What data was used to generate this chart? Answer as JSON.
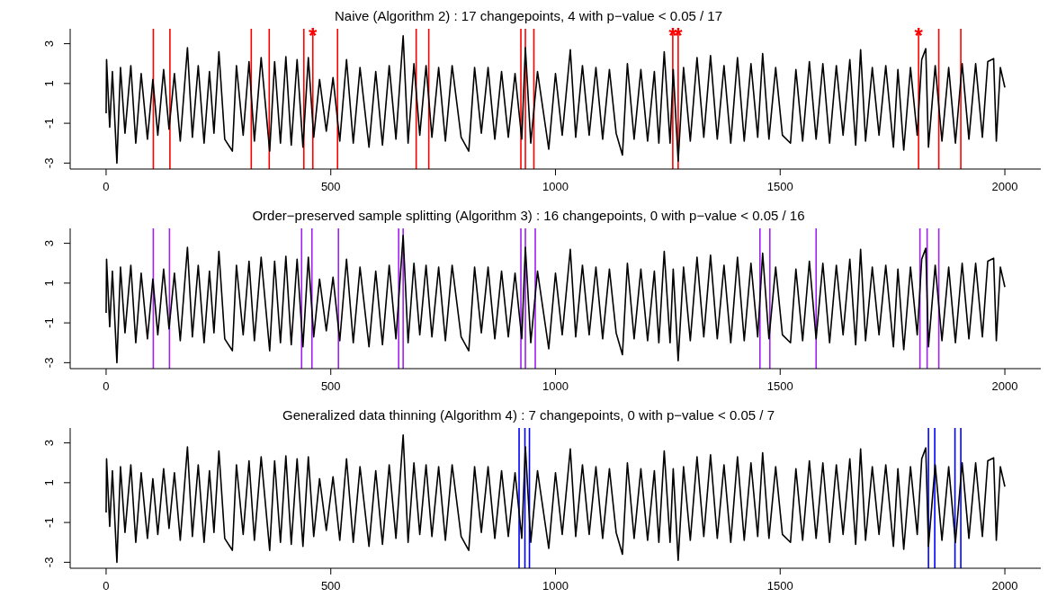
{
  "chart_data": [
    {
      "type": "line",
      "title": "Naive (Algorithm 2) : 17 changepoints, 4 with p−value < 0.05 / 17",
      "xlim": [
        -80,
        2080
      ],
      "xticks": [
        0,
        500,
        1000,
        1500,
        2000
      ],
      "ylim": [
        -3.3,
        3.75
      ],
      "yticks": [
        -3,
        -1,
        1,
        3
      ],
      "grid": false,
      "legend": false,
      "marker": "none",
      "line_style": "solid",
      "x": [
        0,
        1,
        8,
        14,
        24,
        32,
        42,
        55,
        66,
        78,
        92,
        104,
        115,
        128,
        140,
        152,
        165,
        181,
        192,
        205,
        218,
        230,
        240,
        251,
        264,
        281,
        290,
        305,
        318,
        330,
        345,
        364,
        375,
        388,
        400,
        412,
        425,
        438,
        450,
        462,
        475,
        490,
        505,
        520,
        535,
        550,
        565,
        585,
        600,
        615,
        630,
        645,
        661,
        672,
        685,
        698,
        712,
        725,
        740,
        755,
        770,
        790,
        807,
        820,
        835,
        850,
        865,
        880,
        895,
        910,
        925,
        933,
        945,
        960,
        985,
        1000,
        1015,
        1033,
        1045,
        1060,
        1075,
        1090,
        1105,
        1120,
        1135,
        1149,
        1160,
        1175,
        1190,
        1205,
        1220,
        1230,
        1242,
        1255,
        1262,
        1273,
        1285,
        1300,
        1315,
        1330,
        1345,
        1360,
        1375,
        1390,
        1405,
        1420,
        1435,
        1450,
        1461,
        1475,
        1490,
        1505,
        1523,
        1535,
        1550,
        1565,
        1580,
        1595,
        1610,
        1625,
        1640,
        1655,
        1668,
        1679,
        1690,
        1705,
        1720,
        1735,
        1752,
        1762,
        1775,
        1790,
        1805,
        1815,
        1824,
        1830,
        1845,
        1860,
        1875,
        1890,
        1905,
        1920,
        1935,
        1950,
        1962,
        1975,
        1981,
        1990,
        2000
      ],
      "series": [
        {
          "color": "#000000",
          "values": [
            -0.5,
            2.2,
            -1.2,
            1.6,
            -3.0,
            1.8,
            -1.5,
            1.9,
            -2.0,
            1.5,
            -1.8,
            1.2,
            -1.6,
            1.7,
            -1.3,
            1.5,
            -1.9,
            2.8,
            -1.7,
            1.9,
            -2.0,
            1.6,
            -1.5,
            2.6,
            -1.8,
            -2.4,
            1.9,
            -1.6,
            2.1,
            -1.9,
            2.3,
            -2.4,
            2.1,
            -2.0,
            2.35,
            -2.1,
            2.2,
            -2.2,
            2.3,
            -1.7,
            1.2,
            -1.4,
            1.3,
            -1.9,
            2.2,
            -2.0,
            1.8,
            -2.2,
            1.6,
            -2.1,
            1.9,
            -1.8,
            3.4,
            -2.0,
            2.0,
            -1.6,
            1.9,
            -1.7,
            1.8,
            -1.9,
            1.9,
            -1.7,
            -2.4,
            1.8,
            -1.5,
            1.8,
            -1.8,
            1.6,
            -1.7,
            1.5,
            -1.8,
            2.8,
            -2.0,
            1.6,
            -2.3,
            1.5,
            -1.6,
            2.7,
            -1.7,
            1.9,
            -1.6,
            1.8,
            -1.8,
            1.7,
            -1.5,
            -2.6,
            2.0,
            -1.8,
            1.7,
            -1.9,
            1.6,
            -2.0,
            2.6,
            -2.0,
            1.7,
            -2.9,
            1.8,
            -1.9,
            2.3,
            -1.7,
            2.4,
            -1.8,
            1.9,
            -2.0,
            2.3,
            -1.9,
            2.0,
            -1.7,
            2.5,
            -1.8,
            1.8,
            -1.6,
            -2.0,
            1.7,
            -1.9,
            2.1,
            -1.8,
            2.0,
            -2.0,
            1.9,
            -1.6,
            2.2,
            -2.1,
            2.7,
            -1.9,
            1.8,
            -1.6,
            1.9,
            -2.2,
            1.7,
            -2.35,
            1.8,
            -1.6,
            2.2,
            2.75,
            -2.2,
            1.9,
            -1.9,
            1.8,
            -2.0,
            2.0,
            -1.8,
            2.0,
            -1.7,
            2.1,
            2.25,
            -1.9,
            1.8,
            0.8
          ]
        }
      ],
      "ref_lines": [
        {
          "axis": "x",
          "value": 105,
          "color": "#ff0000"
        },
        {
          "axis": "x",
          "value": 142,
          "color": "#ff0000"
        },
        {
          "axis": "x",
          "value": 323,
          "color": "#ff0000"
        },
        {
          "axis": "x",
          "value": 363,
          "color": "#ff0000"
        },
        {
          "axis": "x",
          "value": 440,
          "color": "#ff0000"
        },
        {
          "axis": "x",
          "value": 460,
          "color": "#ff0000"
        },
        {
          "axis": "x",
          "value": 515,
          "color": "#ff0000"
        },
        {
          "axis": "x",
          "value": 690,
          "color": "#ff0000"
        },
        {
          "axis": "x",
          "value": 718,
          "color": "#ff0000"
        },
        {
          "axis": "x",
          "value": 923,
          "color": "#ff0000"
        },
        {
          "axis": "x",
          "value": 933,
          "color": "#ff0000"
        },
        {
          "axis": "x",
          "value": 952,
          "color": "#ff0000"
        },
        {
          "axis": "x",
          "value": 1261,
          "color": "#ff0000"
        },
        {
          "axis": "x",
          "value": 1273,
          "color": "#ff0000"
        },
        {
          "axis": "x",
          "value": 1808,
          "color": "#ff0000"
        },
        {
          "axis": "x",
          "value": 1853,
          "color": "#ff0000"
        },
        {
          "axis": "x",
          "value": 1902,
          "color": "#ff0000"
        }
      ],
      "annotations": [
        {
          "text": "*",
          "x": 460,
          "y": 3.5
        },
        {
          "text": "*",
          "x": 1261,
          "y": 3.5
        },
        {
          "text": "*",
          "x": 1273,
          "y": 3.5
        },
        {
          "text": "*",
          "x": 1808,
          "y": 3.5
        }
      ]
    },
    {
      "type": "line",
      "title": "Order−preserved sample splitting (Algorithm 3) : 16 changepoints, 0 with p−value < 0.05 / 16",
      "xlim": [
        -80,
        2080
      ],
      "xticks": [
        0,
        500,
        1000,
        1500,
        2000
      ],
      "ylim": [
        -3.3,
        3.75
      ],
      "yticks": [
        -3,
        -1,
        1,
        3
      ],
      "grid": false,
      "legend": false,
      "marker": "none",
      "line_style": "solid",
      "x": [
        0,
        1,
        8,
        14,
        24,
        32,
        42,
        55,
        66,
        78,
        92,
        104,
        115,
        128,
        140,
        152,
        165,
        181,
        192,
        205,
        218,
        230,
        240,
        251,
        264,
        281,
        290,
        305,
        318,
        330,
        345,
        364,
        375,
        388,
        400,
        412,
        425,
        438,
        450,
        462,
        475,
        490,
        505,
        520,
        535,
        550,
        565,
        585,
        600,
        615,
        630,
        645,
        661,
        672,
        685,
        698,
        712,
        725,
        740,
        755,
        770,
        790,
        807,
        820,
        835,
        850,
        865,
        880,
        895,
        910,
        925,
        933,
        945,
        960,
        985,
        1000,
        1015,
        1033,
        1045,
        1060,
        1075,
        1090,
        1105,
        1120,
        1135,
        1149,
        1160,
        1175,
        1190,
        1205,
        1220,
        1230,
        1242,
        1255,
        1262,
        1273,
        1285,
        1300,
        1315,
        1330,
        1345,
        1360,
        1375,
        1390,
        1405,
        1420,
        1435,
        1450,
        1461,
        1475,
        1490,
        1505,
        1523,
        1535,
        1550,
        1565,
        1580,
        1595,
        1610,
        1625,
        1640,
        1655,
        1668,
        1679,
        1690,
        1705,
        1720,
        1735,
        1752,
        1762,
        1775,
        1790,
        1805,
        1815,
        1824,
        1830,
        1845,
        1860,
        1875,
        1890,
        1905,
        1920,
        1935,
        1950,
        1962,
        1975,
        1981,
        1990,
        2000
      ],
      "series": [
        {
          "color": "#000000",
          "values": [
            -0.5,
            2.2,
            -1.2,
            1.6,
            -3.0,
            1.8,
            -1.5,
            1.9,
            -2.0,
            1.5,
            -1.8,
            1.2,
            -1.6,
            1.7,
            -1.3,
            1.5,
            -1.9,
            2.8,
            -1.7,
            1.9,
            -2.0,
            1.6,
            -1.5,
            2.6,
            -1.8,
            -2.4,
            1.9,
            -1.6,
            2.1,
            -1.9,
            2.3,
            -2.4,
            2.1,
            -2.0,
            2.35,
            -2.1,
            2.2,
            -2.2,
            2.3,
            -1.7,
            1.2,
            -1.4,
            1.3,
            -1.9,
            2.2,
            -2.0,
            1.8,
            -2.2,
            1.6,
            -2.1,
            1.9,
            -1.8,
            3.4,
            -2.0,
            2.0,
            -1.6,
            1.9,
            -1.7,
            1.8,
            -1.9,
            1.9,
            -1.7,
            -2.4,
            1.8,
            -1.5,
            1.8,
            -1.8,
            1.6,
            -1.7,
            1.5,
            -1.8,
            2.8,
            -2.0,
            1.6,
            -2.3,
            1.5,
            -1.6,
            2.7,
            -1.7,
            1.9,
            -1.6,
            1.8,
            -1.8,
            1.7,
            -1.5,
            -2.6,
            2.0,
            -1.8,
            1.7,
            -1.9,
            1.6,
            -2.0,
            2.6,
            -2.0,
            1.7,
            -2.9,
            1.8,
            -1.9,
            2.3,
            -1.7,
            2.4,
            -1.8,
            1.9,
            -2.0,
            2.3,
            -1.9,
            2.0,
            -1.7,
            2.5,
            -1.8,
            1.8,
            -1.6,
            -2.0,
            1.7,
            -1.9,
            2.1,
            -1.8,
            2.0,
            -2.0,
            1.9,
            -1.6,
            2.2,
            -2.1,
            2.7,
            -1.9,
            1.8,
            -1.6,
            1.9,
            -2.2,
            1.7,
            -2.35,
            1.8,
            -1.6,
            2.2,
            2.75,
            -2.2,
            1.9,
            -1.9,
            1.8,
            -2.0,
            2.0,
            -1.8,
            2.0,
            -1.7,
            2.1,
            2.25,
            -1.9,
            1.8,
            0.8
          ]
        }
      ],
      "ref_lines": [
        {
          "axis": "x",
          "value": 105,
          "color": "#a020f0"
        },
        {
          "axis": "x",
          "value": 141,
          "color": "#a020f0"
        },
        {
          "axis": "x",
          "value": 435,
          "color": "#a020f0"
        },
        {
          "axis": "x",
          "value": 458,
          "color": "#a020f0"
        },
        {
          "axis": "x",
          "value": 517,
          "color": "#a020f0"
        },
        {
          "axis": "x",
          "value": 651,
          "color": "#a020f0"
        },
        {
          "axis": "x",
          "value": 661,
          "color": "#a020f0"
        },
        {
          "axis": "x",
          "value": 923,
          "color": "#a020f0"
        },
        {
          "axis": "x",
          "value": 933,
          "color": "#a020f0"
        },
        {
          "axis": "x",
          "value": 955,
          "color": "#a020f0"
        },
        {
          "axis": "x",
          "value": 1455,
          "color": "#a020f0"
        },
        {
          "axis": "x",
          "value": 1477,
          "color": "#a020f0"
        },
        {
          "axis": "x",
          "value": 1580,
          "color": "#a020f0"
        },
        {
          "axis": "x",
          "value": 1811,
          "color": "#a020f0"
        },
        {
          "axis": "x",
          "value": 1827,
          "color": "#a020f0"
        },
        {
          "axis": "x",
          "value": 1853,
          "color": "#a020f0"
        }
      ]
    },
    {
      "type": "line",
      "title": "Generalized data thinning (Algorithm 4) : 7 changepoints, 0 with p−value < 0.05 / 7",
      "xlim": [
        -80,
        2080
      ],
      "xticks": [
        0,
        500,
        1000,
        1500,
        2000
      ],
      "ylim": [
        -3.3,
        3.75
      ],
      "yticks": [
        -3,
        -1,
        1,
        3
      ],
      "grid": false,
      "legend": false,
      "marker": "none",
      "line_style": "solid",
      "x": [
        0,
        1,
        8,
        14,
        24,
        32,
        42,
        55,
        66,
        78,
        92,
        104,
        115,
        128,
        140,
        152,
        165,
        181,
        192,
        205,
        218,
        230,
        240,
        251,
        264,
        281,
        290,
        305,
        318,
        330,
        345,
        364,
        375,
        388,
        400,
        412,
        425,
        438,
        450,
        462,
        475,
        490,
        505,
        520,
        535,
        550,
        565,
        585,
        600,
        615,
        630,
        645,
        661,
        672,
        685,
        698,
        712,
        725,
        740,
        755,
        770,
        790,
        807,
        820,
        835,
        850,
        865,
        880,
        895,
        910,
        925,
        933,
        945,
        960,
        985,
        1000,
        1015,
        1033,
        1045,
        1060,
        1075,
        1090,
        1105,
        1120,
        1135,
        1149,
        1160,
        1175,
        1190,
        1205,
        1220,
        1230,
        1242,
        1255,
        1262,
        1273,
        1285,
        1300,
        1315,
        1330,
        1345,
        1360,
        1375,
        1390,
        1405,
        1420,
        1435,
        1450,
        1461,
        1475,
        1490,
        1505,
        1523,
        1535,
        1550,
        1565,
        1580,
        1595,
        1610,
        1625,
        1640,
        1655,
        1668,
        1679,
        1690,
        1705,
        1720,
        1735,
        1752,
        1762,
        1775,
        1790,
        1805,
        1815,
        1824,
        1830,
        1845,
        1860,
        1875,
        1890,
        1905,
        1920,
        1935,
        1950,
        1962,
        1975,
        1981,
        1990,
        2000
      ],
      "series": [
        {
          "color": "#000000",
          "values": [
            -0.5,
            2.2,
            -1.2,
            1.6,
            -3.0,
            1.8,
            -1.5,
            1.9,
            -2.0,
            1.5,
            -1.8,
            1.2,
            -1.6,
            1.7,
            -1.3,
            1.5,
            -1.9,
            2.8,
            -1.7,
            1.9,
            -2.0,
            1.6,
            -1.5,
            2.6,
            -1.8,
            -2.4,
            1.9,
            -1.6,
            2.1,
            -1.9,
            2.3,
            -2.4,
            2.1,
            -2.0,
            2.35,
            -2.1,
            2.2,
            -2.2,
            2.3,
            -1.7,
            1.2,
            -1.4,
            1.3,
            -1.9,
            2.2,
            -2.0,
            1.8,
            -2.2,
            1.6,
            -2.1,
            1.9,
            -1.8,
            3.4,
            -2.0,
            2.0,
            -1.6,
            1.9,
            -1.7,
            1.8,
            -1.9,
            1.9,
            -1.7,
            -2.4,
            1.8,
            -1.5,
            1.8,
            -1.8,
            1.6,
            -1.7,
            1.5,
            -1.8,
            2.8,
            -2.0,
            1.6,
            -2.3,
            1.5,
            -1.6,
            2.7,
            -1.7,
            1.9,
            -1.6,
            1.8,
            -1.8,
            1.7,
            -1.5,
            -2.6,
            2.0,
            -1.8,
            1.7,
            -1.9,
            1.6,
            -2.0,
            2.6,
            -2.0,
            1.7,
            -2.9,
            1.8,
            -1.9,
            2.3,
            -1.7,
            2.4,
            -1.8,
            1.9,
            -2.0,
            2.3,
            -1.9,
            2.0,
            -1.7,
            2.5,
            -1.8,
            1.8,
            -1.6,
            -2.0,
            1.7,
            -1.9,
            2.1,
            -1.8,
            2.0,
            -2.0,
            1.9,
            -1.6,
            2.2,
            -2.1,
            2.7,
            -1.9,
            1.8,
            -1.6,
            1.9,
            -2.2,
            1.7,
            -2.35,
            1.8,
            -1.6,
            2.2,
            2.75,
            -2.2,
            1.9,
            -1.9,
            1.8,
            -2.0,
            2.0,
            -1.8,
            2.0,
            -1.7,
            2.1,
            2.25,
            -1.9,
            1.8,
            0.8
          ]
        }
      ],
      "ref_lines": [
        {
          "axis": "x",
          "value": 919,
          "color": "#0000ff"
        },
        {
          "axis": "x",
          "value": 932,
          "color": "#0000ff"
        },
        {
          "axis": "x",
          "value": 942,
          "color": "#0000ff"
        },
        {
          "axis": "x",
          "value": 1830,
          "color": "#0000ff"
        },
        {
          "axis": "x",
          "value": 1844,
          "color": "#0000ff"
        },
        {
          "axis": "x",
          "value": 1889,
          "color": "#0000ff"
        },
        {
          "axis": "x",
          "value": 1902,
          "color": "#0000ff"
        }
      ]
    }
  ]
}
